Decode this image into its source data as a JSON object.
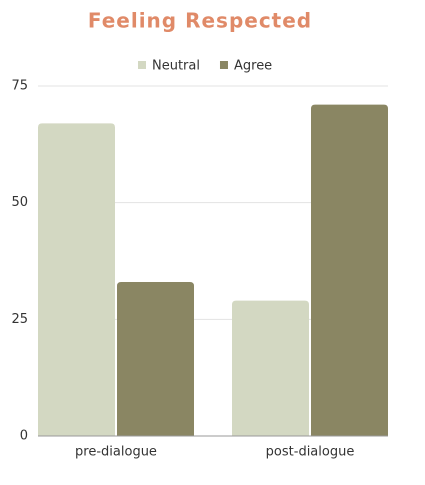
{
  "chart_data": {
    "type": "bar",
    "title": "Feeling Respected",
    "categories": [
      "pre-dialogue",
      "post-dialogue"
    ],
    "series": [
      {
        "name": "Neutral",
        "color": "#d3d8c2",
        "values": [
          67,
          29
        ]
      },
      {
        "name": "Agree",
        "color": "#8a8663",
        "values": [
          33,
          71
        ]
      }
    ],
    "ylim": [
      0,
      75
    ],
    "yticks": [
      0,
      25,
      50,
      75
    ],
    "grid": true,
    "legend": "top"
  }
}
